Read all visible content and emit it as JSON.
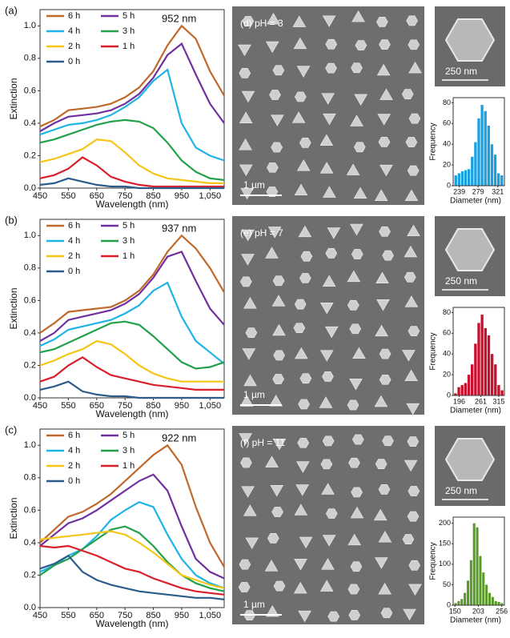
{
  "chart_data": [
    {
      "type": "line",
      "title": "(a)",
      "annotation": "952 nm",
      "x_label": "Wavelength (nm)",
      "y_label": "Extinction",
      "x": [
        450,
        500,
        550,
        600,
        650,
        700,
        750,
        800,
        850,
        900,
        950,
        1000,
        1050,
        1100
      ],
      "xlim": [
        450,
        1100
      ],
      "ylim": [
        0,
        1.1
      ],
      "xticks": [
        450,
        550,
        650,
        750,
        850,
        950,
        {
          "value": 1050,
          "label": "1,050"
        }
      ],
      "yticks": [
        {
          "value": 0,
          "label": "0.0"
        },
        0.2,
        0.4,
        0.6,
        0.8,
        {
          "value": 1,
          "label": "1.0"
        }
      ],
      "series": [
        {
          "name": "6 h",
          "color": "#c0692b",
          "values": [
            0.38,
            0.42,
            0.48,
            0.49,
            0.5,
            0.52,
            0.56,
            0.62,
            0.72,
            0.88,
            1.0,
            0.92,
            0.72,
            0.57
          ]
        },
        {
          "name": "5 h",
          "color": "#7030a0",
          "values": [
            0.35,
            0.4,
            0.44,
            0.45,
            0.46,
            0.48,
            0.52,
            0.58,
            0.68,
            0.82,
            0.89,
            0.7,
            0.52,
            0.4
          ]
        },
        {
          "name": "4 h",
          "color": "#1fb4e6",
          "values": [
            0.33,
            0.36,
            0.39,
            0.4,
            0.42,
            0.45,
            0.5,
            0.56,
            0.66,
            0.73,
            0.4,
            0.25,
            0.2,
            0.17
          ]
        },
        {
          "name": "3 h",
          "color": "#22a04a",
          "values": [
            0.28,
            0.3,
            0.33,
            0.36,
            0.39,
            0.41,
            0.42,
            0.41,
            0.37,
            0.28,
            0.17,
            0.1,
            0.06,
            0.05
          ]
        },
        {
          "name": "2 h",
          "color": "#f5c518",
          "values": [
            0.16,
            0.18,
            0.21,
            0.24,
            0.3,
            0.29,
            0.22,
            0.14,
            0.09,
            0.06,
            0.05,
            0.04,
            0.03,
            0.03
          ]
        },
        {
          "name": "1 h",
          "color": "#d9202a",
          "values": [
            0.06,
            0.08,
            0.12,
            0.19,
            0.14,
            0.07,
            0.04,
            0.02,
            0.01,
            0.01,
            0.01,
            0.01,
            0.01,
            0.01
          ]
        },
        {
          "name": "0 h",
          "color": "#2b5c8a",
          "values": [
            0.02,
            0.03,
            0.06,
            0.04,
            0.02,
            0.01,
            0.01,
            0,
            0,
            0,
            0,
            0,
            0,
            0
          ]
        }
      ]
    },
    {
      "type": "line",
      "title": "(b)",
      "annotation": "937 nm",
      "x_label": "Wavelength (nm)",
      "y_label": "Extinction",
      "x": [
        450,
        500,
        550,
        600,
        650,
        700,
        750,
        800,
        850,
        900,
        950,
        1000,
        1050,
        1100
      ],
      "xlim": [
        450,
        1100
      ],
      "ylim": [
        0,
        1.1
      ],
      "xticks": [
        450,
        550,
        650,
        750,
        850,
        950,
        {
          "value": 1050,
          "label": "1,050"
        }
      ],
      "yticks": [
        {
          "value": 0,
          "label": "0.0"
        },
        0.2,
        0.4,
        0.6,
        0.8,
        {
          "value": 1,
          "label": "1.0"
        }
      ],
      "series": [
        {
          "name": "6 h",
          "color": "#c0692b",
          "values": [
            0.4,
            0.46,
            0.53,
            0.54,
            0.55,
            0.56,
            0.6,
            0.66,
            0.76,
            0.9,
            1.0,
            0.92,
            0.8,
            0.65
          ]
        },
        {
          "name": "5 h",
          "color": "#7030a0",
          "values": [
            0.35,
            0.4,
            0.48,
            0.5,
            0.52,
            0.54,
            0.58,
            0.64,
            0.74,
            0.87,
            0.9,
            0.72,
            0.55,
            0.45
          ]
        },
        {
          "name": "4 h",
          "color": "#1fb4e6",
          "values": [
            0.32,
            0.36,
            0.42,
            0.44,
            0.46,
            0.48,
            0.52,
            0.57,
            0.66,
            0.71,
            0.5,
            0.35,
            0.28,
            0.21
          ]
        },
        {
          "name": "3 h",
          "color": "#22a04a",
          "values": [
            0.28,
            0.3,
            0.34,
            0.38,
            0.42,
            0.46,
            0.47,
            0.45,
            0.38,
            0.3,
            0.22,
            0.18,
            0.19,
            0.22
          ]
        },
        {
          "name": "2 h",
          "color": "#f5c518",
          "values": [
            0.2,
            0.23,
            0.27,
            0.3,
            0.35,
            0.33,
            0.27,
            0.2,
            0.15,
            0.12,
            0.1,
            0.1,
            0.1,
            0.1
          ]
        },
        {
          "name": "1 h",
          "color": "#d9202a",
          "values": [
            0.1,
            0.13,
            0.2,
            0.25,
            0.19,
            0.14,
            0.12,
            0.1,
            0.08,
            0.07,
            0.06,
            0.05,
            0.05,
            0.05
          ]
        },
        {
          "name": "0 h",
          "color": "#2b5c8a",
          "values": [
            0.05,
            0.07,
            0.1,
            0.04,
            0.02,
            0.01,
            0.01,
            0,
            0,
            0,
            0,
            0,
            0,
            0
          ]
        }
      ]
    },
    {
      "type": "line",
      "title": "(c)",
      "annotation": "922 nm",
      "x_label": "Wavelength (nm)",
      "y_label": "Extinction",
      "x": [
        450,
        500,
        550,
        600,
        650,
        700,
        750,
        800,
        850,
        900,
        950,
        1000,
        1050,
        1100
      ],
      "xlim": [
        450,
        1100
      ],
      "ylim": [
        0,
        1.1
      ],
      "xticks": [
        450,
        550,
        650,
        750,
        850,
        950,
        {
          "value": 1050,
          "label": "1,050"
        }
      ],
      "yticks": [
        {
          "value": 0,
          "label": "0.0"
        },
        0.2,
        0.4,
        0.6,
        0.8,
        {
          "value": 1,
          "label": "1.0"
        }
      ],
      "series": [
        {
          "name": "6 h",
          "color": "#c0692b",
          "values": [
            0.4,
            0.48,
            0.56,
            0.59,
            0.64,
            0.7,
            0.78,
            0.86,
            0.94,
            1.0,
            0.88,
            0.62,
            0.4,
            0.25
          ]
        },
        {
          "name": "5 h",
          "color": "#7030a0",
          "values": [
            0.38,
            0.45,
            0.52,
            0.55,
            0.6,
            0.66,
            0.72,
            0.78,
            0.82,
            0.72,
            0.5,
            0.3,
            0.22,
            0.18
          ]
        },
        {
          "name": "4 h",
          "color": "#1fb4e6",
          "values": [
            0.22,
            0.26,
            0.32,
            0.36,
            0.44,
            0.54,
            0.6,
            0.65,
            0.62,
            0.45,
            0.3,
            0.2,
            0.15,
            0.12
          ]
        },
        {
          "name": "3 h",
          "color": "#22a04a",
          "values": [
            0.2,
            0.26,
            0.3,
            0.36,
            0.42,
            0.48,
            0.5,
            0.46,
            0.38,
            0.28,
            0.2,
            0.15,
            0.12,
            0.1
          ]
        },
        {
          "name": "2 h",
          "color": "#f5c518",
          "values": [
            0.42,
            0.43,
            0.44,
            0.45,
            0.46,
            0.47,
            0.45,
            0.4,
            0.34,
            0.27,
            0.2,
            0.17,
            0.14,
            0.12
          ]
        },
        {
          "name": "1 h",
          "color": "#d9202a",
          "values": [
            0.38,
            0.37,
            0.38,
            0.35,
            0.32,
            0.28,
            0.24,
            0.22,
            0.18,
            0.15,
            0.12,
            0.1,
            0.09,
            0.08
          ]
        },
        {
          "name": "0 h",
          "color": "#2b5c8a",
          "values": [
            0.24,
            0.27,
            0.32,
            0.22,
            0.17,
            0.14,
            0.12,
            0.1,
            0.09,
            0.08,
            0.07,
            0.06,
            0.06,
            0.05
          ]
        }
      ]
    },
    {
      "type": "histogram",
      "x_label": "Diameter (nm)",
      "y_label": "Frequency",
      "color": "#1aa0e0",
      "bins": [
        228,
        235,
        242,
        249,
        256,
        263,
        270,
        277,
        284,
        291,
        298,
        305,
        312,
        319,
        326,
        333
      ],
      "values": [
        10,
        12,
        14,
        15,
        16,
        28,
        42,
        65,
        78,
        72,
        58,
        40,
        30,
        12,
        10
      ],
      "xlim": [
        226,
        335
      ],
      "ylim": [
        0,
        85
      ],
      "xticks": [
        239,
        279,
        321
      ],
      "yticks": [
        0,
        20,
        40,
        60,
        80
      ]
    },
    {
      "type": "histogram",
      "x_label": "Diameter (nm)",
      "y_label": "Frequency",
      "color": "#c8102e",
      "bins": [
        180,
        190,
        200,
        210,
        220,
        230,
        240,
        250,
        260,
        270,
        280,
        290,
        300,
        310,
        320,
        330
      ],
      "values": [
        2,
        8,
        10,
        12,
        20,
        30,
        50,
        70,
        78,
        65,
        58,
        40,
        30,
        10,
        5
      ],
      "xlim": [
        178,
        332
      ],
      "ylim": [
        0,
        85
      ],
      "xticks": [
        196,
        261,
        315
      ],
      "yticks": [
        0,
        20,
        40,
        60,
        80
      ]
    },
    {
      "type": "histogram",
      "x_label": "Diameter (nm)",
      "y_label": "Frequency",
      "color": "#5a9a2a",
      "bins": [
        148,
        155,
        162,
        169,
        176,
        183,
        190,
        197,
        204,
        211,
        218,
        225,
        232,
        239,
        246,
        253,
        260
      ],
      "values": [
        5,
        10,
        15,
        30,
        60,
        110,
        200,
        190,
        120,
        80,
        50,
        30,
        20,
        10,
        8,
        5
      ],
      "xlim": [
        146,
        262
      ],
      "ylim": [
        0,
        215
      ],
      "xticks": [
        150,
        203,
        256
      ],
      "yticks": [
        0,
        50,
        100,
        150,
        200
      ]
    }
  ],
  "images": [
    {
      "label": "(d) pH = 3",
      "scale_bar": "1 µm",
      "inset_scale_bar": "250 nm"
    },
    {
      "label": "(e) pH = 7",
      "scale_bar": "1 µm",
      "inset_scale_bar": "250 nm"
    },
    {
      "label": "(f) pH = 11",
      "scale_bar": "1 µm",
      "inset_scale_bar": "250 nm"
    }
  ]
}
